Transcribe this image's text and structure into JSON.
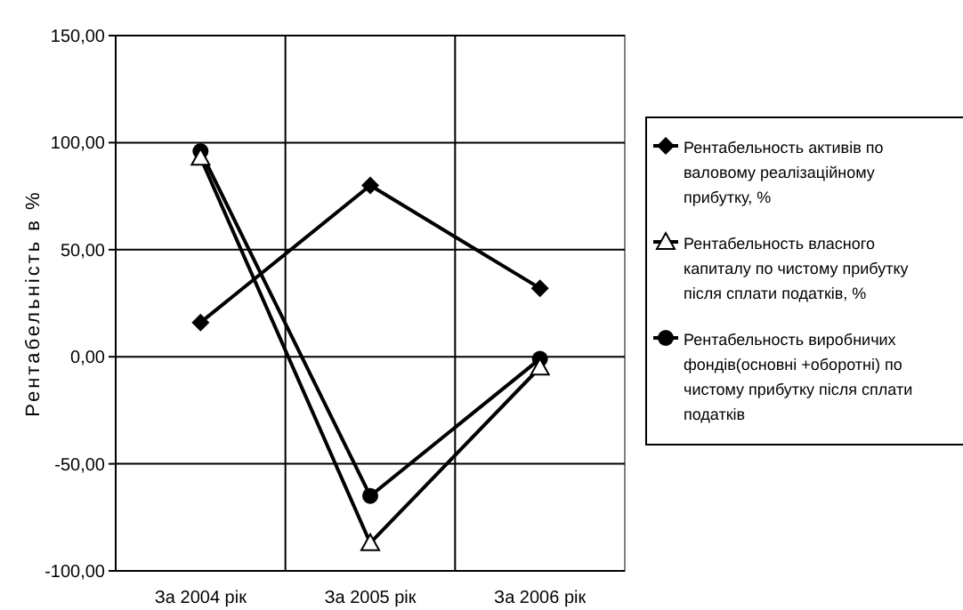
{
  "chart_data": {
    "type": "line",
    "ylabel": "Рентабельність в %",
    "categories": [
      "За 2004 рік",
      "За 2005 рік",
      "За 2006 рік"
    ],
    "series": [
      {
        "name": "Рентабельность активів по валовому реалізаційному прибутку, %",
        "color": "#000000",
        "marker": "diamond",
        "values": [
          16,
          80,
          32
        ]
      },
      {
        "name": "Рентабельность власного капиталу по чистому прибутку після сплати податків, %",
        "color": "#000000",
        "marker": "triangle",
        "values": [
          93,
          -87,
          -5
        ]
      },
      {
        "name": "Рентабельность виробничих фондів(основні +оборотні) по чистому прибутку після сплати податків",
        "color": "#000000",
        "marker": "circle",
        "values": [
          96,
          -65,
          -1
        ]
      }
    ],
    "ylim": [
      -100,
      150
    ],
    "yticks": [
      {
        "value": -100,
        "label": "-100,00"
      },
      {
        "value": -50,
        "label": "-50,00"
      },
      {
        "value": 0,
        "label": "0,00"
      },
      {
        "value": 50,
        "label": "50,00"
      },
      {
        "value": 100,
        "label": "100,00"
      },
      {
        "value": 150,
        "label": "150,00"
      }
    ],
    "grid": true,
    "legend": "right",
    "line_style": "solid"
  }
}
